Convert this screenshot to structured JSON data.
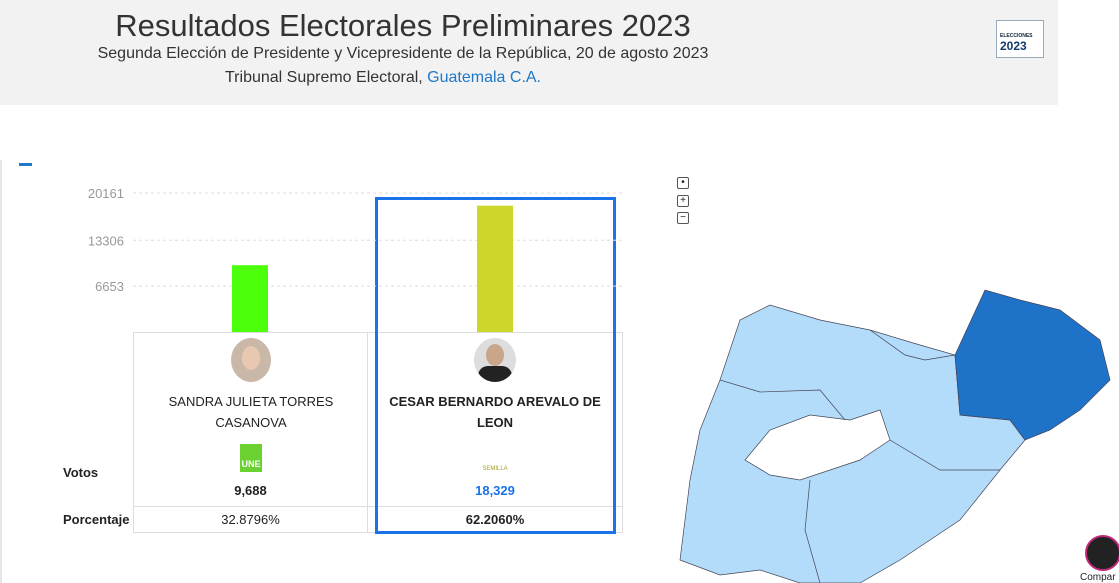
{
  "header": {
    "title": "Resultados Electorales Preliminares 2023",
    "subtitle": "Segunda Elección de Presidente y Vicepresidente de la República, 20 de agosto 2023",
    "org": "Tribunal Supremo Electoral,",
    "org_link": "Guatemala C.A.",
    "logo_text": "ELECCIONES",
    "logo_year": "2023"
  },
  "chart_data": {
    "type": "bar",
    "categories": [
      "SANDRA JULIETA TORRES CASANOVA",
      "CESAR BERNARDO AREVALO DE LEON"
    ],
    "values": [
      9688,
      18329
    ],
    "value_labels": [
      "9,688",
      "18,329"
    ],
    "colors": [
      "#4cff0a",
      "#cdd62a"
    ],
    "ylim": [
      0,
      20161
    ],
    "yticks": [
      6653,
      13306,
      20161
    ],
    "grid": true
  },
  "table": {
    "row_labels": [
      "Votos",
      "Porcentaje"
    ],
    "percent_labels": [
      "32.8796%",
      "62.2060%"
    ],
    "parties": [
      "UNE",
      "SEMILLA"
    ]
  },
  "map_controls": [
    "+",
    "−"
  ],
  "share": "Compar"
}
